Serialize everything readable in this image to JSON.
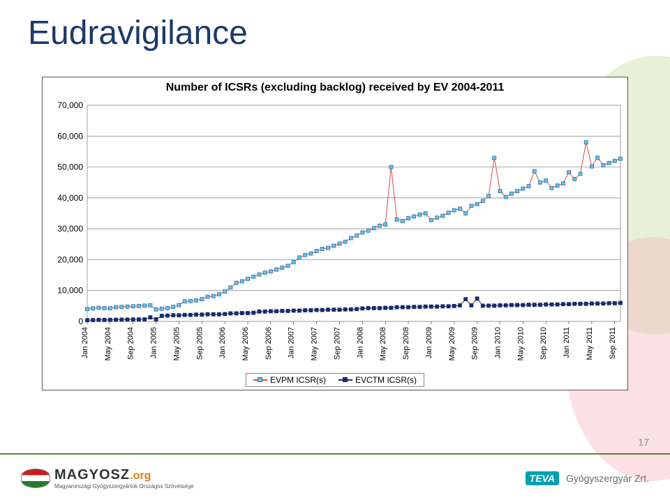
{
  "title": "Eudravigilance",
  "chart": {
    "type": "line+markers",
    "title": "Number of ICSRs (excluding backlog) received by EV 2004-2011",
    "title_fontsize": 16,
    "background_color": "#ffffff",
    "grid_color": "#7a7a7a",
    "ylim": [
      0,
      70000
    ],
    "ytick_step": 10000,
    "yticks": [
      "0",
      "10,000",
      "20,000",
      "30,000",
      "40,000",
      "50,000",
      "60,000",
      "70,000"
    ],
    "x_labels": [
      "Jan 2004",
      "May 2004",
      "Sep 2004",
      "Jan 2005",
      "May 2005",
      "Sep 2005",
      "Jan 2006",
      "May 2006",
      "Sep 2006",
      "Jan 2007",
      "May 2007",
      "Sep 2007",
      "Jan 2008",
      "May 2008",
      "Sep 2008",
      "Jan 2009",
      "May 2009",
      "Sep 2009",
      "Jan 2010",
      "May 2010",
      "Sep 2010",
      "Jan 2011",
      "May 2011",
      "Sep 2011"
    ],
    "x_label_fontsize": 11,
    "x_label_rotate": -90,
    "series": [
      {
        "name": "EVPM ICSR(s)",
        "line_color": "#d84a4a",
        "marker_color": "#6ac3e6",
        "marker_border": "#2a6ea8",
        "marker": "square",
        "marker_size": 5,
        "line_width": 1,
        "values": [
          4000,
          4200,
          4400,
          4300,
          4250,
          4600,
          4700,
          4800,
          4900,
          5000,
          5100,
          5200,
          3900,
          4100,
          4300,
          4700,
          5300,
          6500,
          6600,
          6800,
          7200,
          8000,
          8200,
          8800,
          9700,
          11000,
          12500,
          13000,
          13800,
          14500,
          15200,
          15800,
          16200,
          16800,
          17400,
          18000,
          19200,
          20700,
          21500,
          22000,
          22800,
          23500,
          23800,
          24500,
          25200,
          25800,
          27000,
          27800,
          28800,
          29400,
          30200,
          31000,
          31400,
          50000,
          33000,
          32500,
          33400,
          34000,
          34600,
          35000,
          32800,
          33600,
          34200,
          35200,
          36000,
          36500,
          35000,
          37400,
          38000,
          39000,
          40600,
          53000,
          42200,
          40300,
          41400,
          42200,
          43000,
          43800,
          48600,
          45000,
          45600,
          43200,
          44000,
          44700,
          48300,
          46100,
          47800,
          58000,
          50200,
          53000,
          50600,
          51300,
          52000,
          52700
        ]
      },
      {
        "name": "EVCTM ICSR(s)",
        "line_color": "#1a2a6a",
        "marker_color": "#1a2a6a",
        "marker_border": "#1a2a6a",
        "marker": "square",
        "marker_size": 5,
        "line_width": 1,
        "values": [
          400,
          450,
          500,
          500,
          520,
          550,
          580,
          600,
          620,
          640,
          660,
          1300,
          680,
          1800,
          1900,
          2000,
          2000,
          2100,
          2100,
          2200,
          2200,
          2300,
          2300,
          2300,
          2400,
          2600,
          2600,
          2700,
          2700,
          2800,
          3200,
          3200,
          3300,
          3300,
          3400,
          3400,
          3500,
          3500,
          3600,
          3600,
          3700,
          3700,
          3800,
          3800,
          3800,
          3900,
          3900,
          4000,
          4200,
          4300,
          4300,
          4300,
          4400,
          4400,
          4600,
          4600,
          4600,
          4700,
          4700,
          4800,
          4800,
          4800,
          4900,
          4900,
          5000,
          5200,
          7200,
          5200,
          7400,
          5100,
          5100,
          5100,
          5200,
          5200,
          5300,
          5300,
          5300,
          5400,
          5400,
          5400,
          5500,
          5500,
          5500,
          5600,
          5600,
          5700,
          5700,
          5700,
          5800,
          5800,
          5800,
          5900,
          5900,
          6000
        ]
      }
    ],
    "legend_border": "#888888"
  },
  "footer": {
    "logo_name": "MAGYOSZ",
    "logo_org_suffix": ".org",
    "logo_subtitle": "Magyarországi Gyógyszergyártók Országos Szövetsége",
    "teva": "TEVA",
    "company": "Gyógyszergyár Zrt."
  },
  "page_number": "17"
}
